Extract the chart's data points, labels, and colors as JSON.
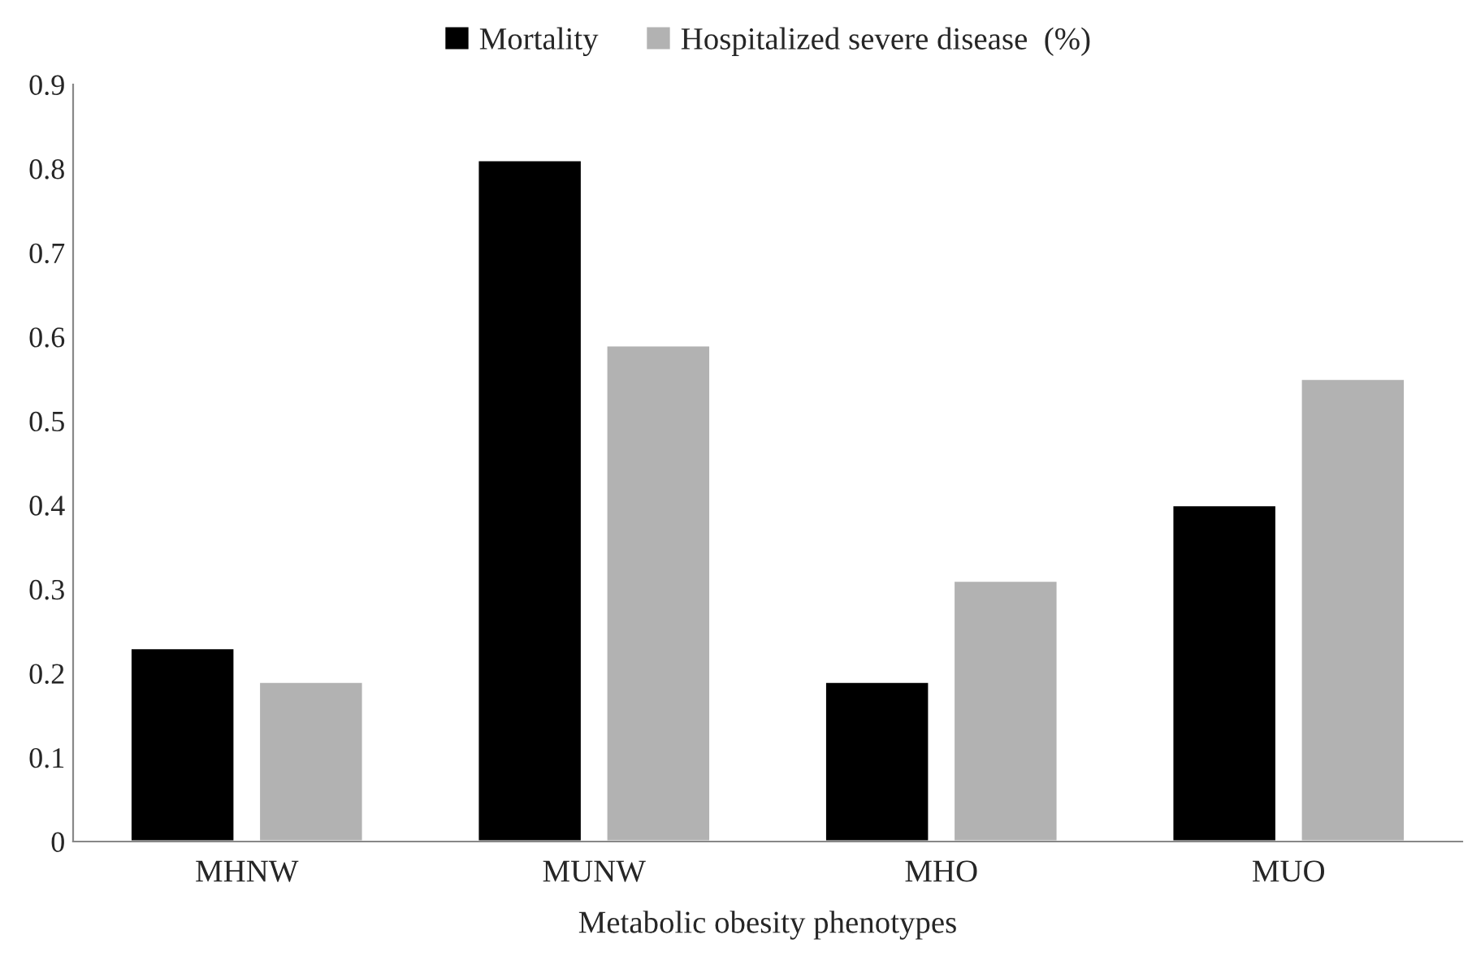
{
  "chart_data": {
    "type": "bar",
    "xlabel": "Metabolic obesity phenotypes",
    "categories": [
      "MHNW",
      "MUNW",
      "MHO",
      "MUO"
    ],
    "series": [
      {
        "name": "Mortality",
        "color": "#000000",
        "values": [
          0.23,
          0.81,
          0.19,
          0.4
        ]
      },
      {
        "name": "Hospitalized severe disease  (%)",
        "color": "#b2b2b2",
        "values": [
          0.19,
          0.59,
          0.31,
          0.55
        ]
      }
    ],
    "ylim": [
      0,
      0.9
    ],
    "yticks": [
      0,
      0.1,
      0.2,
      0.3,
      0.4,
      0.5,
      0.6,
      0.7,
      0.8,
      0.9
    ],
    "grid": false,
    "legend": "top"
  }
}
